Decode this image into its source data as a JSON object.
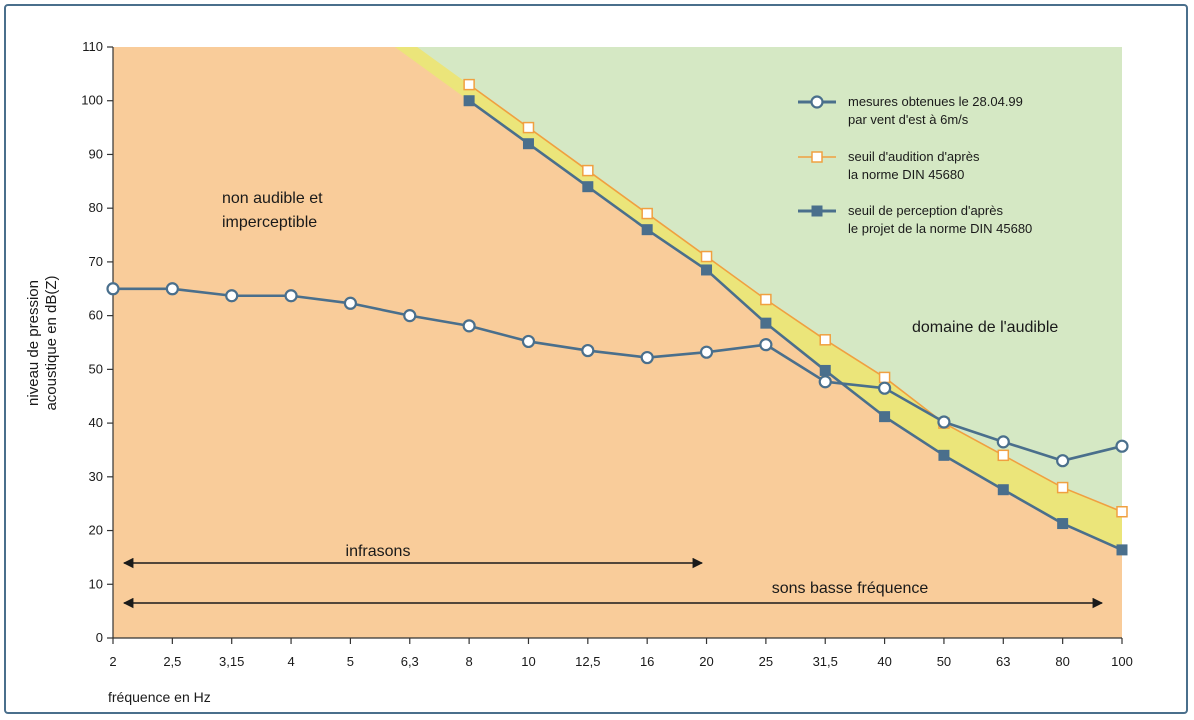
{
  "chart_data": {
    "type": "line",
    "ylabel_line1": "niveau de pression",
    "ylabel_line2": "acoustique en dB(Z)",
    "xlabel": "fréquence en Hz",
    "categories": [
      "2",
      "2,5",
      "3,15",
      "4",
      "5",
      "6,3",
      "8",
      "10",
      "12,5",
      "16",
      "20",
      "25",
      "31,5",
      "40",
      "50",
      "63",
      "80",
      "100"
    ],
    "y_ticks": [
      "0",
      "10",
      "20",
      "30",
      "40",
      "50",
      "60",
      "70",
      "80",
      "90",
      "100",
      "110"
    ],
    "ylim": [
      0,
      110
    ],
    "grid": false,
    "legend_position": "top-right",
    "series": [
      {
        "key": "measured",
        "name_line1": "mesures obtenues le 28.04.99",
        "name_line2": "par vent d'est à 6m/s",
        "marker": "open-circle",
        "color": "#4a6f8c",
        "values": [
          65,
          65,
          63.7,
          63.7,
          62.3,
          60,
          58.1,
          55.2,
          53.5,
          52.2,
          53.2,
          54.6,
          47.7,
          46.5,
          40.2,
          36.5,
          33,
          35.7
        ]
      },
      {
        "key": "hearing",
        "name_line1": "seuil d'audition d'après",
        "name_line2": "la norme DIN 45680",
        "marker": "open-square",
        "color": "#f0a040",
        "values": [
          null,
          null,
          null,
          null,
          null,
          null,
          103,
          95,
          87,
          79,
          71,
          63,
          55.5,
          48.5,
          40,
          34,
          28,
          23.5
        ]
      },
      {
        "key": "perception",
        "name_line1": "seuil de perception d'après",
        "name_line2": "le projet de la norme DIN 45680",
        "marker": "filled-square",
        "color": "#4a6f8c",
        "values": [
          null,
          null,
          null,
          null,
          null,
          null,
          100,
          92,
          84,
          76,
          68.5,
          58.6,
          49.8,
          41.2,
          34,
          27.6,
          21.3,
          16.4
        ]
      }
    ],
    "annotations": {
      "inaudible_line1": "non audible et",
      "inaudible_line2": "imperceptible",
      "audible": "domaine de l'audible",
      "infrasons": "infrasons",
      "low_freq": "sons basse fréquence"
    },
    "colors": {
      "inaudible_area": "#f9cc9a",
      "audible_area": "#d5e8c4",
      "band_area": "#ebe57a",
      "axis": "#333333"
    }
  }
}
